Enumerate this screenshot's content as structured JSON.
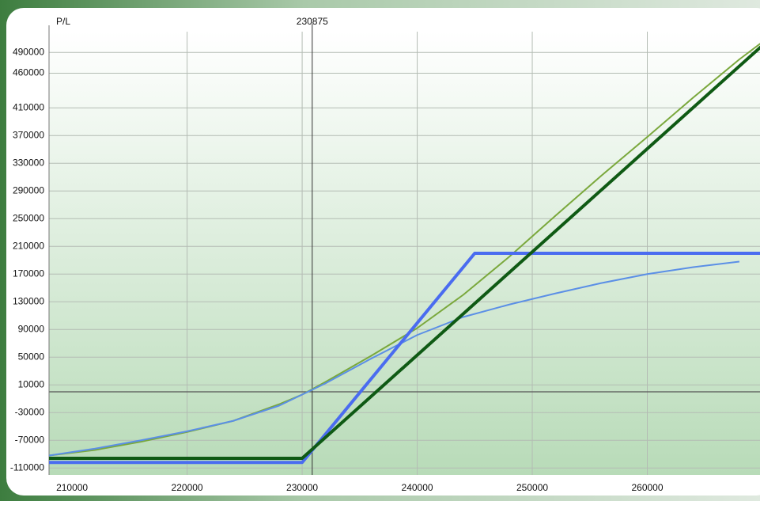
{
  "chart_data": {
    "type": "line",
    "y_label": "P/L",
    "cursor": 230875,
    "xlim": [
      208000,
      270000
    ],
    "ylim": [
      -120000,
      520000
    ],
    "xticks": [
      210000,
      220000,
      230000,
      240000,
      250000,
      260000
    ],
    "yticks": [
      490000,
      460000,
      410000,
      370000,
      330000,
      290000,
      250000,
      210000,
      170000,
      130000,
      90000,
      50000,
      10000,
      -30000,
      -70000,
      -110000
    ],
    "grid": true,
    "series": [
      {
        "color": "#7aa83c",
        "width": 2,
        "x": [
          208000,
          212000,
          216000,
          220000,
          224000,
          228000,
          230000,
          232000,
          236000,
          240000,
          244000,
          248000,
          252000,
          256000,
          260000,
          264000,
          268000,
          270000
        ],
        "values": [
          -92000,
          -84000,
          -72000,
          -58000,
          -42000,
          -18000,
          -4000,
          14000,
          52000,
          92000,
          140000,
          195000,
          254000,
          312000,
          368000,
          425000,
          480000,
          505000
        ]
      },
      {
        "color": "#5b8fe6",
        "width": 2,
        "x": [
          208000,
          212000,
          216000,
          220000,
          224000,
          228000,
          230000,
          232000,
          236000,
          240000,
          244000,
          248000,
          252000,
          256000,
          260000,
          264000,
          268000
        ],
        "values": [
          -92000,
          -82000,
          -70000,
          -57000,
          -42000,
          -20000,
          -4000,
          12000,
          48000,
          82000,
          108000,
          126000,
          142000,
          157000,
          170000,
          180000,
          188000
        ]
      },
      {
        "color": "#4a6cf0",
        "width": 4,
        "x": [
          208000,
          230000,
          245000,
          270000
        ],
        "values": [
          -102000,
          -102000,
          200000,
          200000
        ]
      },
      {
        "color": "#0f5a14",
        "width": 4,
        "x": [
          208000,
          230000,
          270000
        ],
        "values": [
          -96000,
          -96000,
          500000
        ]
      }
    ]
  }
}
